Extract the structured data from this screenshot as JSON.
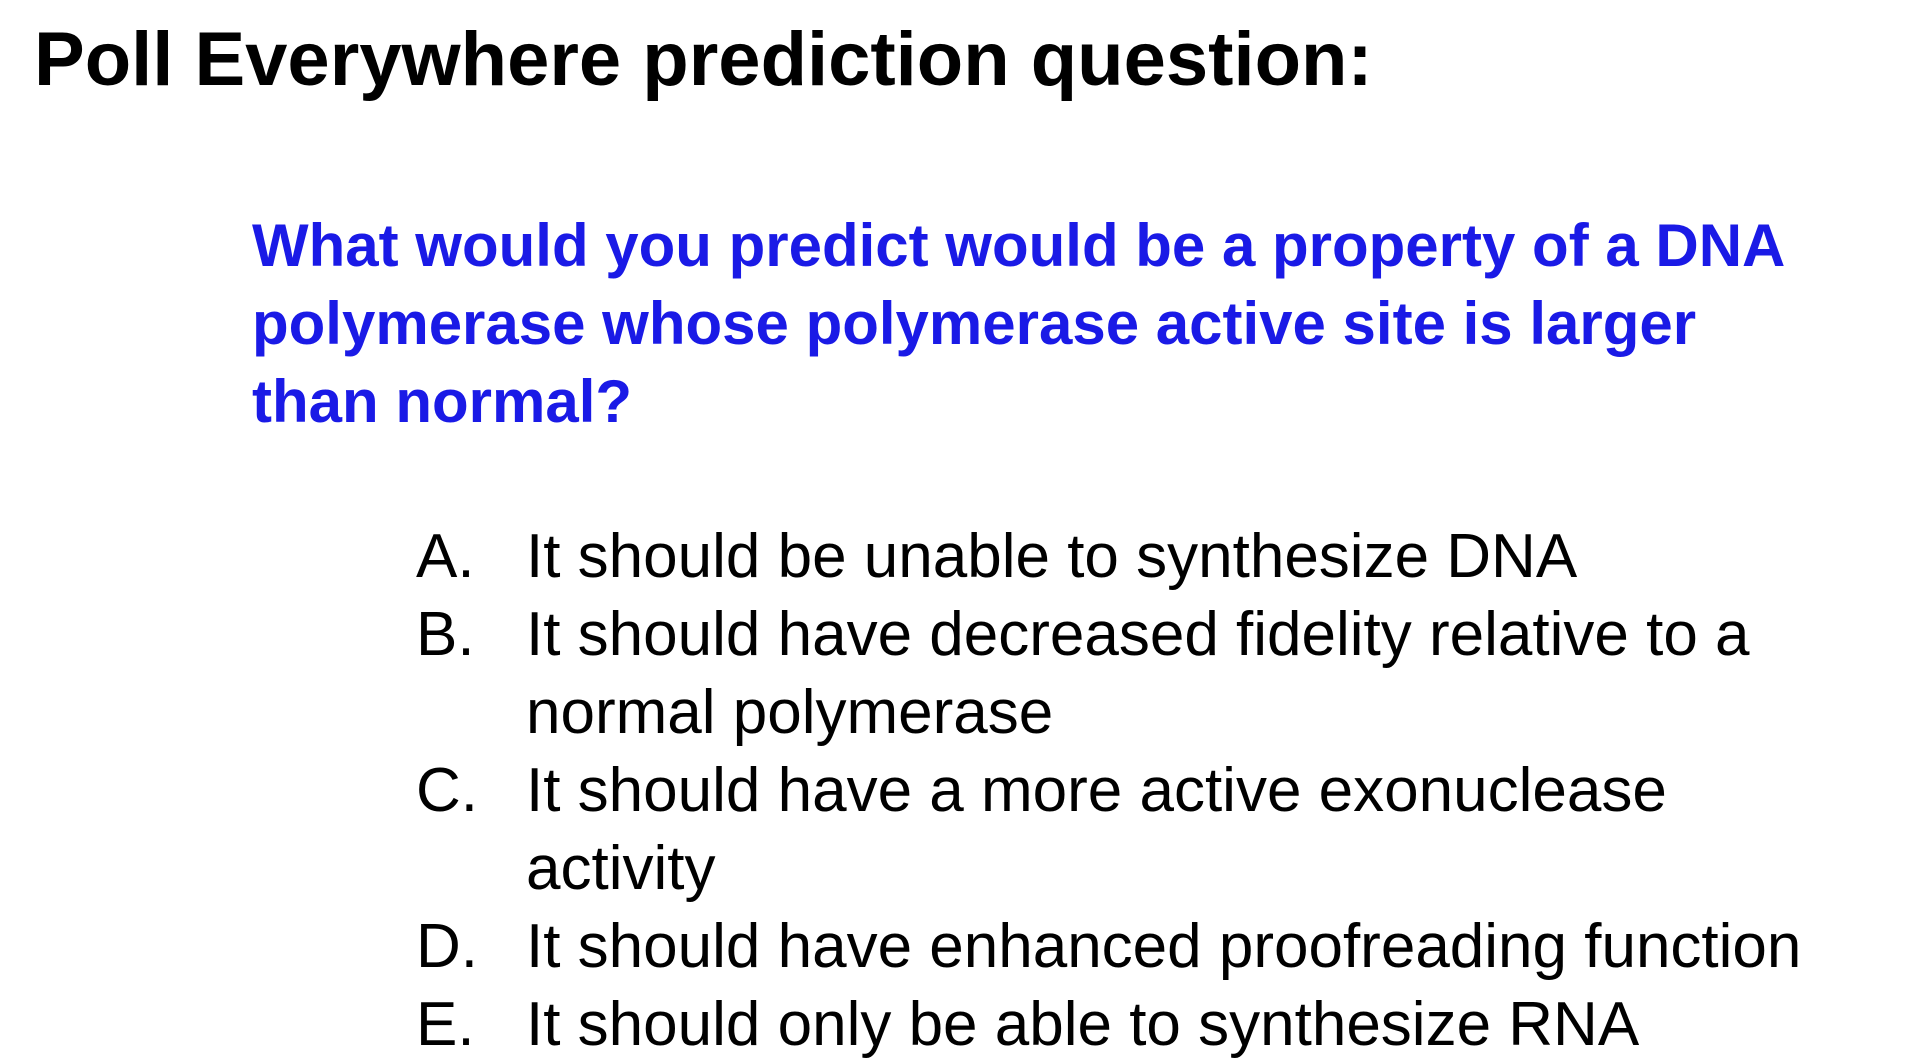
{
  "slide": {
    "title": "Poll Everywhere prediction question:",
    "question_color": "#1a1ae6",
    "question_lines": [
      "What would you predict would be a property of a DNA",
      "polymerase whose polymerase active site is larger",
      "than normal?"
    ],
    "options": [
      {
        "letter": "A.",
        "lines": [
          "It should be unable to synthesize DNA"
        ]
      },
      {
        "letter": "B.",
        "lines": [
          "It should have decreased fidelity relative to a",
          "normal polymerase"
        ]
      },
      {
        "letter": "C.",
        "lines": [
          "It should have a more active exonuclease",
          "activity"
        ]
      },
      {
        "letter": "D.",
        "lines": [
          "It should have enhanced proofreading function"
        ]
      },
      {
        "letter": "E.",
        "lines": [
          "It should only be able to synthesize RNA"
        ]
      }
    ]
  }
}
